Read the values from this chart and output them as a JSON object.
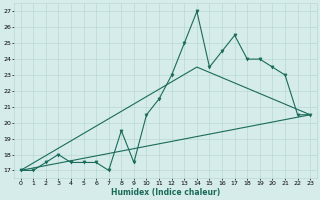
{
  "xlabel": "Humidex (Indice chaleur)",
  "ylabel": "",
  "bg_color": "#d6ecea",
  "grid_color": "#b8d8d5",
  "line_color": "#1a6b5a",
  "xlim": [
    -0.5,
    23.5
  ],
  "ylim": [
    16.5,
    27.5
  ],
  "yticks": [
    17,
    18,
    19,
    20,
    21,
    22,
    23,
    24,
    25,
    26,
    27
  ],
  "xticks": [
    0,
    1,
    2,
    3,
    4,
    5,
    6,
    7,
    8,
    9,
    10,
    11,
    12,
    13,
    14,
    15,
    16,
    17,
    18,
    19,
    20,
    21,
    22,
    23
  ],
  "series1_x": [
    0,
    1,
    2,
    3,
    4,
    5,
    6,
    7,
    8,
    9,
    10,
    11,
    12,
    13,
    14,
    15,
    16,
    17,
    18,
    19,
    20,
    21,
    22,
    23
  ],
  "series1_y": [
    17.0,
    17.0,
    17.5,
    18.0,
    17.5,
    17.5,
    17.5,
    17.0,
    19.5,
    17.5,
    20.5,
    21.5,
    23.0,
    25.0,
    27.0,
    23.5,
    24.5,
    25.5,
    24.0,
    24.0,
    23.5,
    23.0,
    20.5,
    20.5
  ],
  "series2_x": [
    0,
    23
  ],
  "series2_y": [
    17.0,
    20.5
  ],
  "series3_x": [
    0,
    14,
    23
  ],
  "series3_y": [
    17.0,
    23.5,
    20.5
  ]
}
